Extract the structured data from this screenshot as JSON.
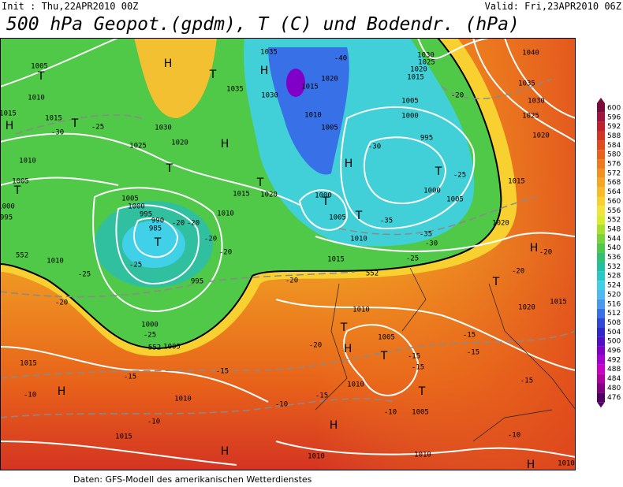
{
  "header": {
    "init": "Init : Thu,22APR2010 00Z",
    "valid": "Valid: Fri,23APR2010 06Z",
    "title": "500 hPa Geopot.(gpdm), T (C) und Bodendr. (hPa)"
  },
  "map": {
    "labels": [
      "1005",
      "T",
      "1010",
      "1015",
      "1015",
      "H",
      "T",
      "-30",
      "-25",
      "1030",
      "1025",
      "1020",
      "H",
      "T",
      "H",
      "1035",
      "H",
      "1035",
      "1030",
      "1015",
      "1020",
      "-40",
      "1010",
      "1005",
      "-30",
      "1005",
      "1000",
      "995",
      "T",
      "-25",
      "1000",
      "1005",
      "1015",
      "1040",
      "1035",
      "1030",
      "1025",
      "1020",
      "-20",
      "1030",
      "1025",
      "1020",
      "1015",
      "1010",
      "1005",
      "T",
      "1000",
      "995",
      "1005",
      "1000",
      "995",
      "990",
      "985",
      "-20",
      "-20",
      "T",
      "-20",
      "-20",
      "1010",
      "1015",
      "T",
      "1020",
      "-25",
      "1010",
      "-25",
      "-20",
      "995",
      "1000",
      "-25",
      "1005",
      "1000",
      "T",
      "1005",
      "T",
      "-35",
      "1010",
      "-35",
      "-30",
      "-25",
      "1015",
      "1020",
      "H",
      "-20",
      "T",
      "-20",
      "1020",
      "1015",
      "-20",
      "1010",
      "T",
      "H",
      "-20",
      "1005",
      "T",
      "-15",
      "-15",
      "-15",
      "-15",
      "T",
      "1010",
      "-15",
      "-10",
      "-10",
      "1005",
      "H",
      "1015",
      "H",
      "-10",
      "-15",
      "-15",
      "1010",
      "-10",
      "1015",
      "H",
      "1010",
      "1010",
      "1010",
      "-15",
      "-10",
      "H",
      "552",
      "552",
      "552",
      "H",
      "T"
    ]
  },
  "colorbar": {
    "levels": [
      {
        "value": 600,
        "color": "#7a0a3a"
      },
      {
        "value": 596,
        "color": "#a0143c"
      },
      {
        "value": 592,
        "color": "#c0202c"
      },
      {
        "value": 588,
        "color": "#d43422"
      },
      {
        "value": 584,
        "color": "#e04a1c"
      },
      {
        "value": 580,
        "color": "#e8621a"
      },
      {
        "value": 576,
        "color": "#ee7a1c"
      },
      {
        "value": 572,
        "color": "#f29020"
      },
      {
        "value": 568,
        "color": "#f5a624"
      },
      {
        "value": 564,
        "color": "#f7bc28"
      },
      {
        "value": 560,
        "color": "#f8d030"
      },
      {
        "value": 556,
        "color": "#f2e43a"
      },
      {
        "value": 552,
        "color": "#d8ec30"
      },
      {
        "value": 548,
        "color": "#a8e02c"
      },
      {
        "value": 544,
        "color": "#78d43a"
      },
      {
        "value": 540,
        "color": "#50c848"
      },
      {
        "value": 536,
        "color": "#30c070"
      },
      {
        "value": 532,
        "color": "#20c0a0"
      },
      {
        "value": 528,
        "color": "#28c8c8"
      },
      {
        "value": 524,
        "color": "#40d0e8"
      },
      {
        "value": 520,
        "color": "#50b8f0"
      },
      {
        "value": 516,
        "color": "#4898f0"
      },
      {
        "value": 512,
        "color": "#3870e8"
      },
      {
        "value": 508,
        "color": "#3048d8"
      },
      {
        "value": 504,
        "color": "#3028c8"
      },
      {
        "value": 500,
        "color": "#5010c8"
      },
      {
        "value": 496,
        "color": "#8000c8"
      },
      {
        "value": 492,
        "color": "#a800d0"
      },
      {
        "value": 488,
        "color": "#c800c8"
      },
      {
        "value": 484,
        "color": "#b000a0"
      },
      {
        "value": 480,
        "color": "#800080"
      },
      {
        "value": 476,
        "color": "#500060"
      }
    ]
  },
  "footer": "Daten: GFS-Modell des amerikanischen Wetterdienstes"
}
